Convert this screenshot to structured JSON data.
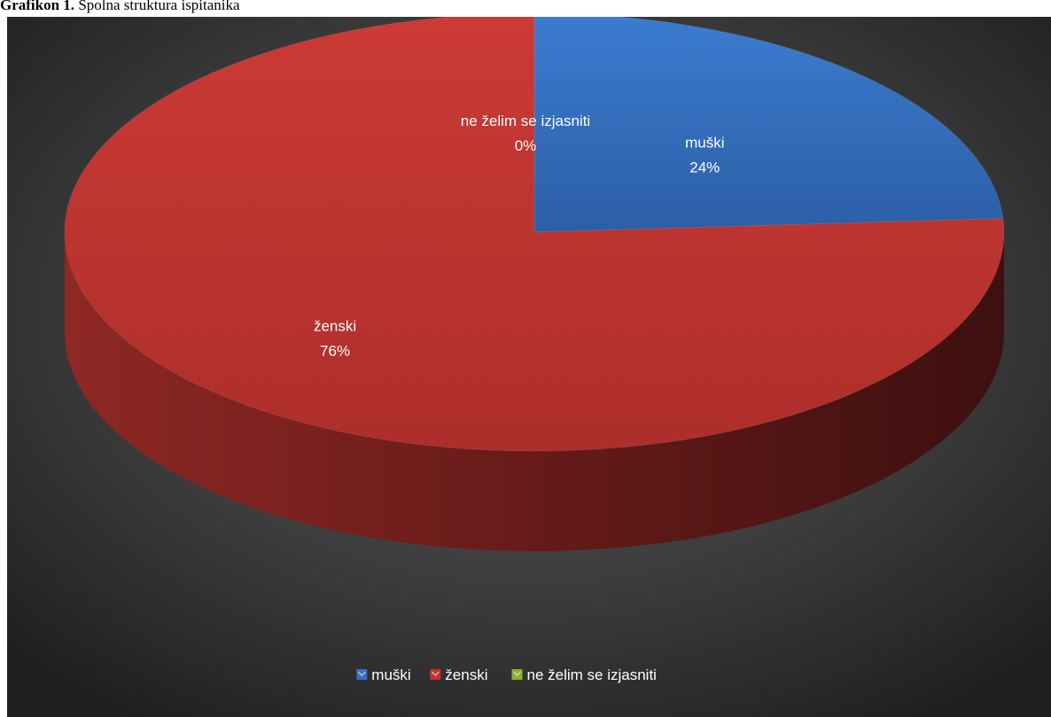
{
  "caption": {
    "prefix": "Grafikon 1.",
    "text": "Spolna struktura ispitanika"
  },
  "chart_data": {
    "type": "pie",
    "title": "",
    "categories": [
      "muški",
      "ženski",
      "ne želim se izjasniti"
    ],
    "values": [
      24,
      76,
      0
    ],
    "value_labels": [
      "24%",
      "76%",
      "0%"
    ],
    "colors": [
      "#3a6fc0",
      "#c0332f",
      "#8cb032"
    ],
    "legend": {
      "position": "bottom",
      "entries": [
        "muški",
        "ženski",
        "ne želim se izjasniti"
      ]
    },
    "style": "3d"
  }
}
